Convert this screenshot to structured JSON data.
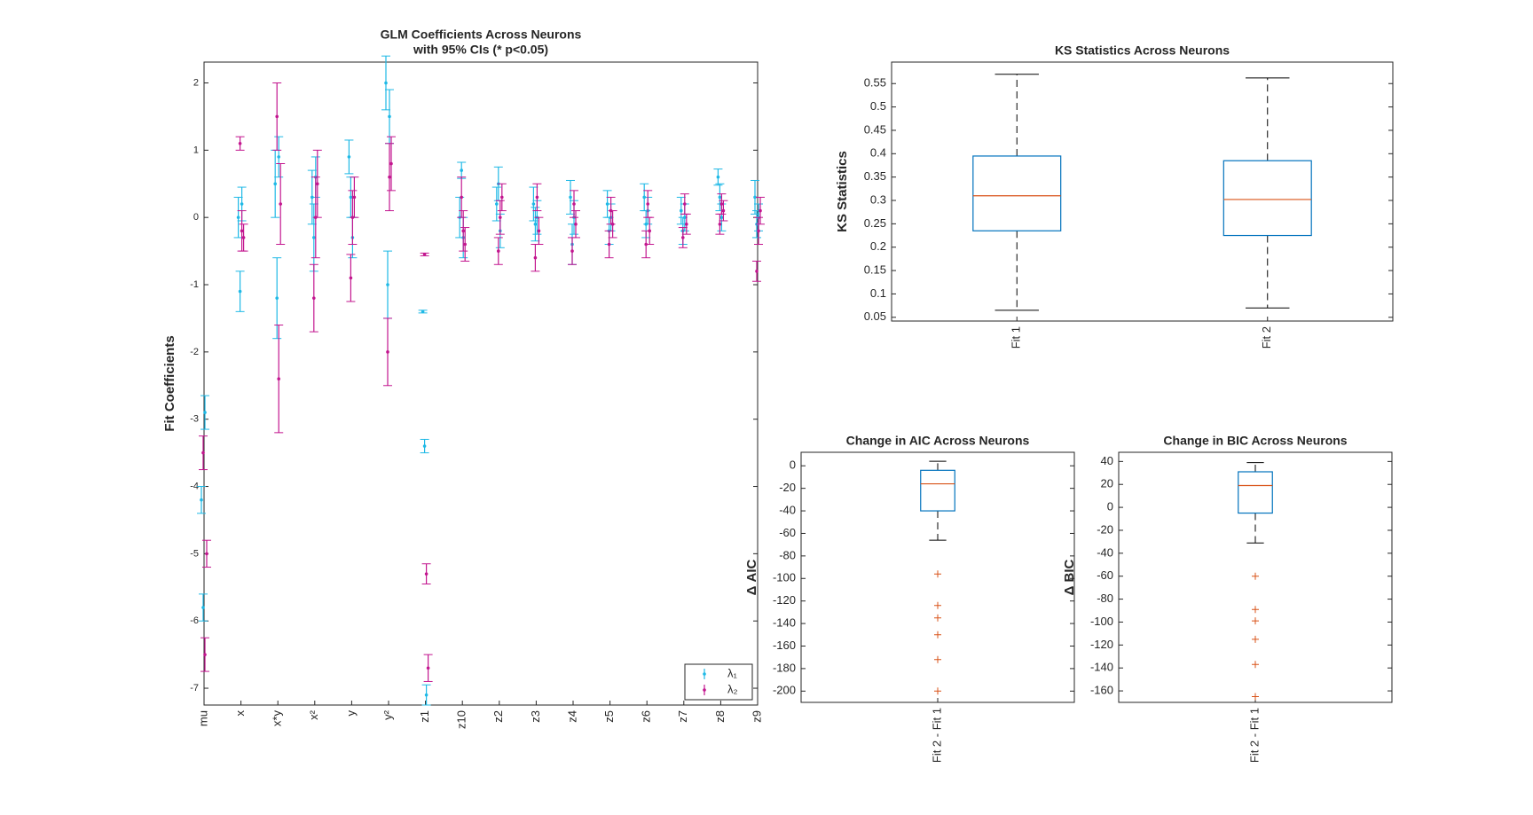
{
  "chart_data": [
    {
      "type": "errorbar",
      "title": "GLM Coefficients Across Neurons",
      "subtitle": "with 95% CIs (* p<0.05)",
      "ylabel": "Fit Coefficients",
      "categories": [
        "mu",
        "x",
        "x*y",
        "x²",
        "y",
        "y²",
        "z1",
        "z10",
        "z2",
        "z3",
        "z4",
        "z5",
        "z6",
        "z7",
        "z8",
        "z9"
      ],
      "series": [
        {
          "name": "λ₁",
          "color": "#1fb9e6",
          "values": [
            [
              -4.2,
              -5.8,
              -2.9
            ],
            [
              0.0,
              -1.1,
              0.2
            ],
            [
              0.5,
              -1.2,
              0.9
            ],
            [
              0.3,
              -0.3,
              0.6
            ],
            [
              0.9,
              0.3,
              -0.3
            ],
            [
              2.0,
              -1.0,
              1.5
            ],
            [
              -1.4,
              -3.4,
              -7.1
            ],
            [
              0.0,
              0.7,
              -0.3
            ],
            [
              0.2,
              0.5,
              -0.2
            ],
            [
              0.2,
              -0.1,
              0.0
            ],
            [
              0.3,
              -0.4,
              0.0
            ],
            [
              0.2,
              -0.2,
              0.0
            ],
            [
              0.3,
              -0.1,
              0.1
            ],
            [
              0.1,
              -0.2,
              0.0
            ],
            [
              0.6,
              0.3,
              0.0
            ],
            [
              0.3,
              -0.1,
              0.0
            ]
          ],
          "errors": [
            [
              0.2,
              0.2,
              0.25
            ],
            [
              0.3,
              0.3,
              0.25
            ],
            [
              0.5,
              0.6,
              0.3
            ],
            [
              0.4,
              0.5,
              0.3
            ],
            [
              0.25,
              0.3,
              0.3
            ],
            [
              0.4,
              0.5,
              0.4
            ],
            [
              0.02,
              0.1,
              0.15
            ],
            [
              0.3,
              0.12,
              0.3
            ],
            [
              0.25,
              0.25,
              0.25
            ],
            [
              0.25,
              0.25,
              0.25
            ],
            [
              0.25,
              0.3,
              0.25
            ],
            [
              0.2,
              0.2,
              0.2
            ],
            [
              0.2,
              0.2,
              0.2
            ],
            [
              0.2,
              0.2,
              0.2
            ],
            [
              0.12,
              0.2,
              0.2
            ],
            [
              0.25,
              0.2,
              0.2
            ]
          ]
        },
        {
          "name": "λ₂",
          "color": "#c3168f",
          "values": [
            [
              -3.5,
              -6.5,
              -5.0
            ],
            [
              1.1,
              -0.2,
              -0.3
            ],
            [
              1.5,
              -2.4,
              0.2
            ],
            [
              -1.2,
              0.0,
              0.5
            ],
            [
              -0.9,
              0.0,
              0.3
            ],
            [
              -2.0,
              0.6,
              0.8
            ],
            [
              -0.55,
              -5.3,
              -6.7
            ],
            [
              0.3,
              -0.2,
              -0.4
            ],
            [
              -0.5,
              0.0,
              0.3
            ],
            [
              -0.6,
              0.3,
              -0.2
            ],
            [
              -0.5,
              0.2,
              -0.1
            ],
            [
              -0.4,
              0.1,
              -0.1
            ],
            [
              -0.4,
              0.2,
              -0.2
            ],
            [
              -0.3,
              0.2,
              -0.1
            ],
            [
              -0.1,
              0.2,
              0.1
            ],
            [
              -0.8,
              -0.2,
              0.1
            ]
          ],
          "errors": [
            [
              0.25,
              0.25,
              0.2
            ],
            [
              0.1,
              0.3,
              0.2
            ],
            [
              0.5,
              0.8,
              0.6
            ],
            [
              0.5,
              0.6,
              0.5
            ],
            [
              0.35,
              0.4,
              0.3
            ],
            [
              0.5,
              0.5,
              0.4
            ],
            [
              0.02,
              0.15,
              0.2
            ],
            [
              0.3,
              0.3,
              0.25
            ],
            [
              0.2,
              0.25,
              0.2
            ],
            [
              0.2,
              0.2,
              0.2
            ],
            [
              0.2,
              0.2,
              0.2
            ],
            [
              0.2,
              0.2,
              0.2
            ],
            [
              0.2,
              0.2,
              0.2
            ],
            [
              0.15,
              0.15,
              0.15
            ],
            [
              0.15,
              0.15,
              0.15
            ],
            [
              0.15,
              0.2,
              0.2
            ]
          ]
        }
      ],
      "ylim": [
        -7.25,
        2.31
      ],
      "yticks": [
        -7,
        -6,
        -5,
        -4,
        -3,
        -2,
        -1,
        0,
        1,
        2
      ],
      "legend": "southeast"
    },
    {
      "type": "box",
      "title": "KS Statistics Across Neurons",
      "ylabel": "KS Statistics",
      "categories": [
        "Fit 1",
        "Fit 2"
      ],
      "boxes": [
        {
          "whisker_low": 0.065,
          "q1": 0.235,
          "median": 0.31,
          "q3": 0.395,
          "whisker_high": 0.57,
          "outliers": []
        },
        {
          "whisker_low": 0.07,
          "q1": 0.225,
          "median": 0.302,
          "q3": 0.385,
          "whisker_high": 0.562,
          "outliers": []
        }
      ],
      "ylim": [
        0.042,
        0.596
      ],
      "yticks": [
        0.05,
        0.1,
        0.15,
        0.2,
        0.25,
        0.3,
        0.35,
        0.4,
        0.45,
        0.5,
        0.55
      ]
    },
    {
      "type": "box",
      "title": "Change in AIC Across Neurons",
      "ylabel": "Δ AIC",
      "categories": [
        "Fit 2 - Fit 1"
      ],
      "boxes": [
        {
          "whisker_low": -66,
          "q1": -40,
          "median": -16,
          "q3": -4,
          "whisker_high": 4,
          "outliers": [
            -96,
            -124,
            -135,
            -150,
            -172,
            -200
          ]
        }
      ],
      "ylim": [
        -210,
        12
      ],
      "yticks": [
        -200,
        -180,
        -160,
        -140,
        -120,
        -100,
        -80,
        -60,
        -40,
        -20,
        0
      ]
    },
    {
      "type": "box",
      "title": "Change in BIC Across Neurons",
      "ylabel": "Δ BIC",
      "categories": [
        "Fit 2 - Fit 1"
      ],
      "boxes": [
        {
          "whisker_low": -31,
          "q1": -5,
          "median": 19,
          "q3": 31,
          "whisker_high": 39,
          "outliers": [
            -60,
            -89,
            -99,
            -115,
            -137,
            -165
          ]
        }
      ],
      "ylim": [
        -170,
        48
      ],
      "yticks": [
        -160,
        -140,
        -120,
        -100,
        -80,
        -60,
        -40,
        -20,
        0,
        20,
        40
      ]
    }
  ]
}
